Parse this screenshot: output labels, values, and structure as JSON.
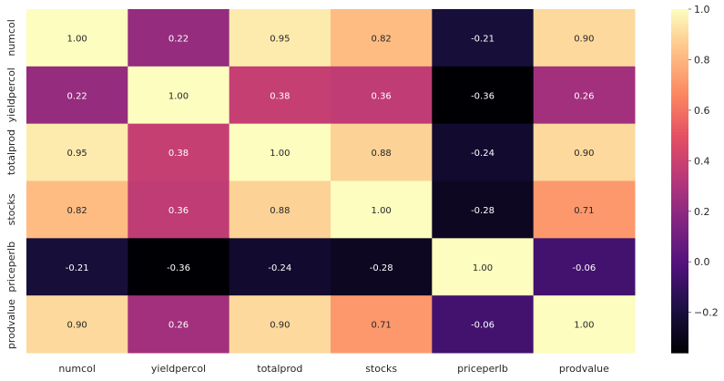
{
  "chart_data": {
    "type": "heatmap",
    "title": "",
    "xlabel": "",
    "ylabel": "",
    "x_labels": [
      "numcol",
      "yieldpercol",
      "totalprod",
      "stocks",
      "priceperlb",
      "prodvalue"
    ],
    "y_labels": [
      "numcol",
      "yieldpercol",
      "totalprod",
      "stocks",
      "priceperlb",
      "prodvalue"
    ],
    "values": [
      [
        1.0,
        0.22,
        0.95,
        0.82,
        -0.21,
        0.9
      ],
      [
        0.22,
        1.0,
        0.38,
        0.36,
        -0.36,
        0.26
      ],
      [
        0.95,
        0.38,
        1.0,
        0.88,
        -0.24,
        0.9
      ],
      [
        0.82,
        0.36,
        0.88,
        1.0,
        -0.28,
        0.71
      ],
      [
        -0.21,
        -0.36,
        -0.24,
        -0.28,
        1.0,
        -0.06
      ],
      [
        0.9,
        0.26,
        0.9,
        0.71,
        -0.06,
        1.0
      ]
    ],
    "value_format": "2 decimals",
    "colormap": "magma",
    "vmin": -0.36,
    "vmax": 1.0,
    "colorbar_ticks": [
      1.0,
      0.8,
      0.6,
      0.4,
      0.2,
      0.0,
      -0.2
    ],
    "colorbar_tick_labels": [
      "1.0",
      "0.8",
      "0.6",
      "0.4",
      "0.2",
      "0.0",
      "−0.2"
    ],
    "legend": "colorbar right",
    "grid": false
  }
}
